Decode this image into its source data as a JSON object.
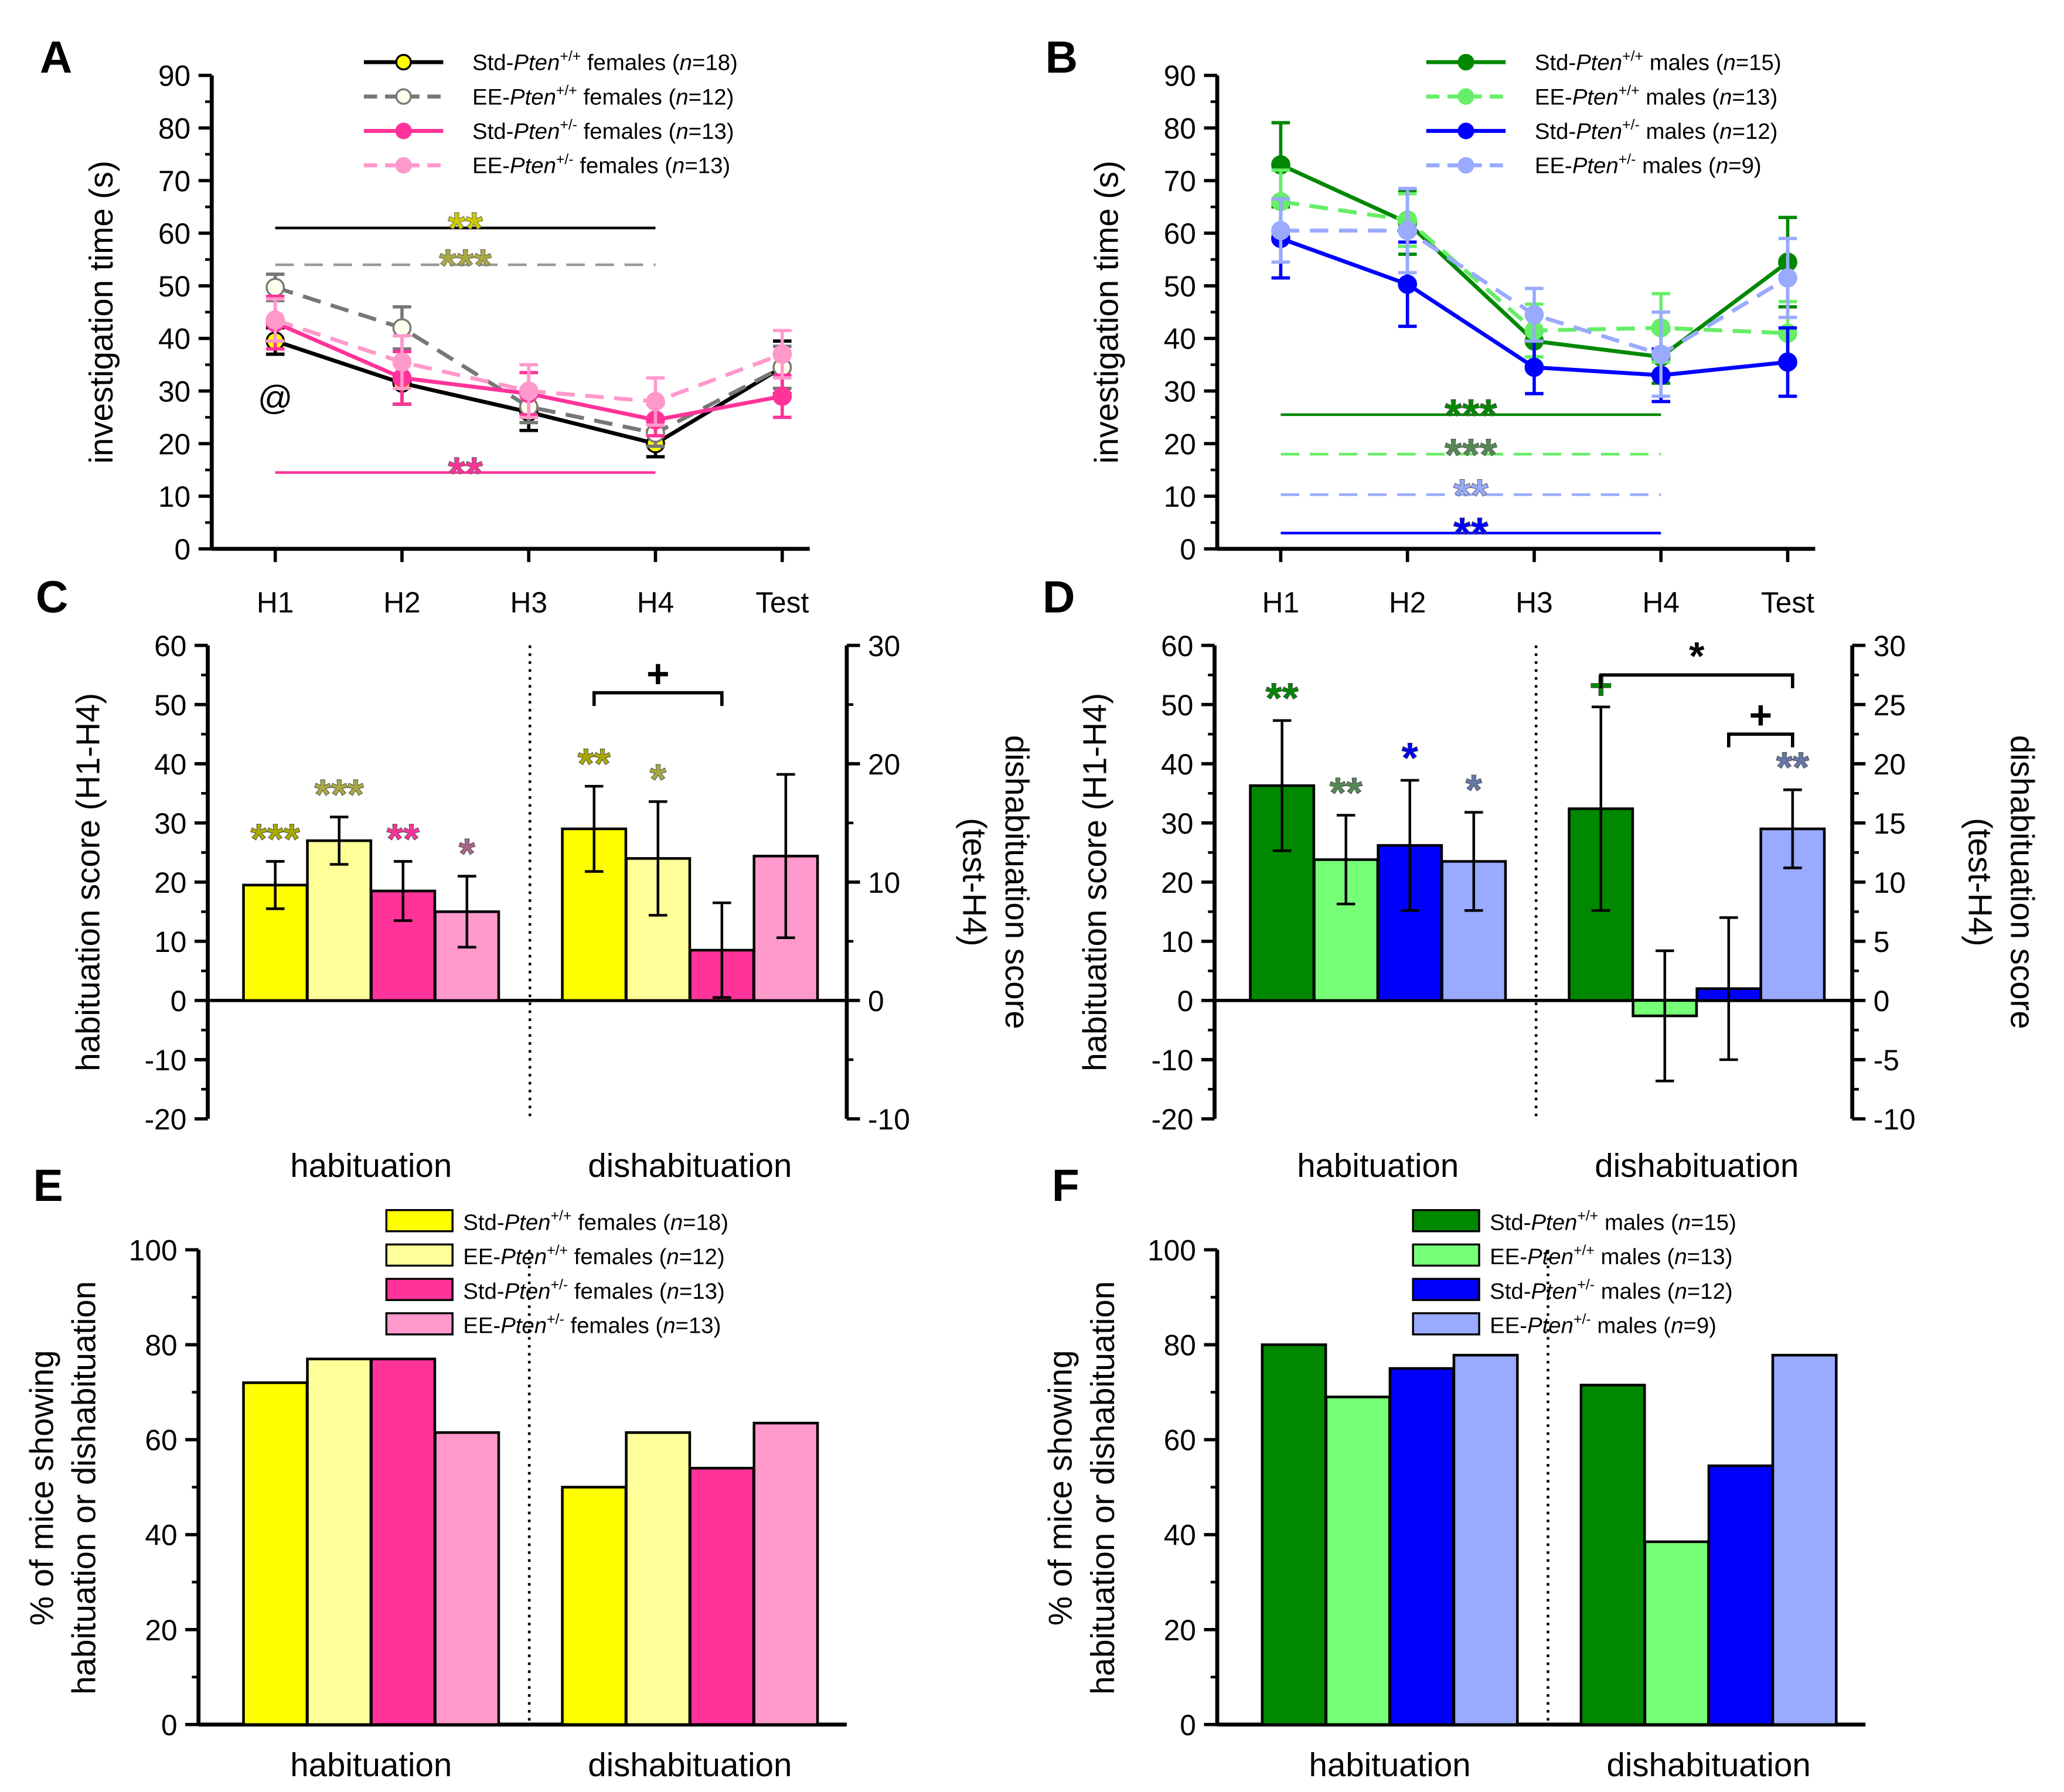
{
  "colors": {
    "std_wt_f": "#000000",
    "ee_wt_f": "#777777",
    "std_het_f": "#ff3399",
    "ee_het_f": "#ff99cc",
    "bar_std_wt_f": "#ffff00",
    "bar_ee_wt_f": "#ffff99",
    "bar_std_het_f": "#ff3399",
    "bar_ee_het_f": "#ff99cc",
    "std_wt_m": "#008800",
    "ee_wt_m": "#66ee66",
    "std_het_m": "#0000ff",
    "ee_het_m": "#99aaff",
    "bar_std_wt_m": "#008800",
    "bar_ee_wt_m": "#77ff77",
    "bar_std_het_m": "#0000ff",
    "bar_ee_het_m": "#99aaff"
  },
  "chart_data": [
    {
      "panel": "A",
      "type": "line",
      "categories": [
        "H1",
        "H2",
        "H3",
        "H4",
        "Test"
      ],
      "ylabel": "investigation time (s)",
      "ylim": [
        0,
        90
      ],
      "yticks": [
        0,
        10,
        20,
        30,
        40,
        50,
        60,
        70,
        80,
        90
      ],
      "series": [
        {
          "name": "Std-Pten+/+ females (n=18)",
          "legend": {
            "pre": "Std-",
            "gene": "Pten",
            "sup": "+/+",
            "post": " females (",
            "n": "n",
            "end": "=18)"
          },
          "color": "#000000",
          "marker": "#ffff00",
          "dashed": false,
          "values": [
            39.5,
            31.5,
            26,
            20,
            34.5
          ],
          "errors": [
            2.5,
            4,
            3.5,
            2.5,
            5
          ]
        },
        {
          "name": "EE-Pten+/+ females (n=12)",
          "legend": {
            "pre": "EE-",
            "gene": "Pten",
            "sup": "+/+",
            "post": " females (",
            "n": "n",
            "end": "=12)"
          },
          "color": "#777777",
          "marker": "#ffffee",
          "dashed": true,
          "values": [
            49.7,
            42,
            27,
            22,
            34.5
          ],
          "errors": [
            2.5,
            4,
            3,
            2.5,
            4
          ]
        },
        {
          "name": "Std-Pten+/- females (n=13)",
          "legend": {
            "pre": "Std-",
            "gene": "Pten",
            "sup": "+/-",
            "post": " females (",
            "n": "n",
            "end": "=13)"
          },
          "color": "#ff3399",
          "marker": "#ff3399",
          "dashed": false,
          "values": [
            43,
            32.5,
            29.5,
            24.5,
            29
          ],
          "errors": [
            5,
            5,
            4,
            3,
            4
          ]
        },
        {
          "name": "EE-Pten+/- females (n=13)",
          "legend": {
            "pre": "EE-",
            "gene": "Pten",
            "sup": "+/-",
            "post": " females (",
            "n": "n",
            "end": "=13)"
          },
          "color": "#ff99cc",
          "marker": "#ff99cc",
          "dashed": true,
          "values": [
            43.5,
            35.5,
            30,
            28,
            37
          ],
          "errors": [
            4,
            5,
            5,
            4.5,
            4.5
          ]
        }
      ],
      "annotations": [
        {
          "text": "**",
          "y": 61,
          "color": "#000000",
          "star": "#cccc00",
          "dashed": false
        },
        {
          "text": "***",
          "y": 54,
          "color": "#999999",
          "star": "#aaaa44",
          "dashed": true
        },
        {
          "text": "**",
          "y": 14.5,
          "color": "#ff3399",
          "star": "#ff3399",
          "dashed": false
        }
      ],
      "marker_text": {
        "text": "@",
        "category": "H1",
        "y": 29
      }
    },
    {
      "panel": "B",
      "type": "line",
      "categories": [
        "H1",
        "H2",
        "H3",
        "H4",
        "Test"
      ],
      "ylabel": "investigation time (s)",
      "ylim": [
        0,
        90
      ],
      "yticks": [
        0,
        10,
        20,
        30,
        40,
        50,
        60,
        70,
        80,
        90
      ],
      "series": [
        {
          "name": "Std-Pten+/+ males (n=15)",
          "legend": {
            "pre": "Std-",
            "gene": "Pten",
            "sup": "+/+",
            "post": " males (",
            "n": "n",
            "end": "=15)"
          },
          "color": "#008800",
          "marker": "#008800",
          "dashed": false,
          "values": [
            73,
            62,
            39.5,
            36.5,
            54.5
          ],
          "errors": [
            8,
            6,
            5,
            5,
            8.5
          ]
        },
        {
          "name": "EE-Pten+/+ males (n=13)",
          "legend": {
            "pre": "EE-",
            "gene": "Pten",
            "sup": "+/+",
            "post": " males (",
            "n": "n",
            "end": "=13)"
          },
          "color": "#66ee66",
          "marker": "#66ee66",
          "dashed": true,
          "values": [
            66,
            62.5,
            41.5,
            42,
            41
          ],
          "errors": [
            6,
            5,
            5,
            6.5,
            6
          ]
        },
        {
          "name": "Std-Pten+/- males (n=12)",
          "legend": {
            "pre": "Std-",
            "gene": "Pten",
            "sup": "+/-",
            "post": " males (",
            "n": "n",
            "end": "=12)"
          },
          "color": "#0000ff",
          "marker": "#0000ff",
          "dashed": false,
          "values": [
            59,
            50.3,
            34.5,
            33,
            35.5
          ],
          "errors": [
            7.5,
            8,
            5,
            5,
            6.5
          ]
        },
        {
          "name": "EE-Pten+/- males (n=9)",
          "legend": {
            "pre": "EE-",
            "gene": "Pten",
            "sup": "+/-",
            "post": " males (",
            "n": "n",
            "end": "=9)"
          },
          "color": "#99aaff",
          "marker": "#99aaff",
          "dashed": true,
          "values": [
            60.5,
            60.5,
            44.5,
            37,
            51.5
          ],
          "errors": [
            6,
            8,
            5,
            8,
            7.5
          ]
        }
      ],
      "annotations": [
        {
          "text": "***",
          "y": 25.5,
          "color": "#008800",
          "star": "#008800",
          "dashed": false
        },
        {
          "text": "***",
          "y": 18,
          "color": "#66ee66",
          "star": "#558855",
          "dashed": true
        },
        {
          "text": "**",
          "y": 10.3,
          "color": "#99aaff",
          "star": "#99aaff",
          "dashed": true
        },
        {
          "text": "**",
          "y": 3,
          "color": "#0000ff",
          "star": "#0000ff",
          "dashed": false
        }
      ]
    },
    {
      "panel": "C",
      "type": "bar",
      "groups": [
        "habituation",
        "dishabituation"
      ],
      "ylabel": "habituation score (H1-H4)",
      "ylim": [
        -20,
        60
      ],
      "yticks": [
        -20,
        -10,
        0,
        10,
        20,
        30,
        40,
        50,
        60
      ],
      "y2label": [
        "dishabituation score",
        "(test-H4)"
      ],
      "y2lim": [
        -10,
        30
      ],
      "y2ticks": [
        -10,
        0,
        10,
        20,
        30
      ],
      "colors": [
        "#ffff00",
        "#ffff99",
        "#ff3399",
        "#ff99cc"
      ],
      "habituation": {
        "values": [
          19.5,
          27,
          18.5,
          15
        ],
        "errors": [
          4,
          4,
          5,
          6
        ],
        "stars": [
          "***",
          "***",
          "**",
          "*"
        ],
        "star_colors": [
          "#aaaa00",
          "#aaaa44",
          "#ff3399",
          "#aa6688"
        ]
      },
      "dishabituation": {
        "values": [
          14.5,
          12,
          4.25,
          12.2
        ],
        "errors": [
          3.6,
          4.8,
          4,
          6.9
        ],
        "stars": [
          "**",
          "*",
          "",
          ""
        ],
        "star_colors": [
          "#aaaa00",
          "#aaaa44",
          "",
          ""
        ]
      },
      "brackets": [
        {
          "from": 0,
          "to": 2,
          "text": "+",
          "y2": 26
        }
      ]
    },
    {
      "panel": "D",
      "type": "bar",
      "groups": [
        "habituation",
        "dishabituation"
      ],
      "ylabel": "habituation score (H1-H4)",
      "ylim": [
        -20,
        60
      ],
      "yticks": [
        -20,
        -10,
        0,
        10,
        20,
        30,
        40,
        50,
        60
      ],
      "y2label": [
        "dishabituation score",
        "(test-H4)"
      ],
      "y2lim": [
        -10,
        30
      ],
      "y2ticks": [
        -10,
        -5,
        0,
        5,
        10,
        15,
        20,
        25,
        30
      ],
      "colors": [
        "#008800",
        "#77ff77",
        "#0000ff",
        "#99aaff"
      ],
      "habituation": {
        "values": [
          36.3,
          23.8,
          26.2,
          23.5
        ],
        "errors": [
          11,
          7.5,
          11,
          8.3
        ],
        "stars": [
          "**",
          "**",
          "*",
          "*"
        ],
        "star_colors": [
          "#008800",
          "#558855",
          "#0000ff",
          "#6677aa"
        ]
      },
      "dishabituation": {
        "values": [
          16.2,
          -1.3,
          1,
          14.5
        ],
        "errors": [
          8.6,
          5.5,
          6,
          3.3
        ],
        "stars": [
          "+",
          "",
          "",
          "**"
        ],
        "star_colors": [
          "#008800",
          "",
          "",
          "#6677aa"
        ]
      },
      "brackets": [
        {
          "from": 0,
          "to": 3,
          "text": "*",
          "y2": 27.5
        },
        {
          "from": 2,
          "to": 3,
          "text": "+",
          "y2": 22.5
        }
      ]
    },
    {
      "panel": "E",
      "type": "bar",
      "groups": [
        "habituation",
        "dishabituation"
      ],
      "ylabel": [
        "% of mice showing",
        "habituation or dishabituation"
      ],
      "ylim": [
        0,
        100
      ],
      "yticks": [
        0,
        20,
        40,
        60,
        80,
        100
      ],
      "legend": [
        {
          "pre": "Std-",
          "gene": "Pten",
          "sup": "+/+",
          "post": " females (",
          "n": "n",
          "end": "=18)"
        },
        {
          "pre": "EE-",
          "gene": "Pten",
          "sup": "+/+",
          "post": " females (",
          "n": "n",
          "end": "=12)"
        },
        {
          "pre": "Std-",
          "gene": "Pten",
          "sup": "+/-",
          "post": " females (",
          "n": "n",
          "end": "=13)"
        },
        {
          "pre": "EE-",
          "gene": "Pten",
          "sup": "+/-",
          "post": " females (",
          "n": "n",
          "end": "=13)"
        }
      ],
      "colors": [
        "#ffff00",
        "#ffff99",
        "#ff3399",
        "#ff99cc"
      ],
      "habituation": {
        "values": [
          72,
          77,
          77,
          61.5
        ]
      },
      "dishabituation": {
        "values": [
          50,
          61.5,
          54,
          63.5
        ]
      }
    },
    {
      "panel": "F",
      "type": "bar",
      "groups": [
        "habituation",
        "dishabituation"
      ],
      "ylabel": [
        "% of mice showing",
        "habituation or dishabituation"
      ],
      "ylim": [
        0,
        100
      ],
      "yticks": [
        0,
        20,
        40,
        60,
        80,
        100
      ],
      "legend": [
        {
          "pre": "Std-",
          "gene": "Pten",
          "sup": "+/+",
          "post": " males (",
          "n": "n",
          "end": "=15)"
        },
        {
          "pre": "EE-",
          "gene": "Pten",
          "sup": "+/+",
          "post": " males (",
          "n": "n",
          "end": "=13)"
        },
        {
          "pre": "Std-",
          "gene": "Pten",
          "sup": "+/-",
          "post": " males (",
          "n": "n",
          "end": "=12)"
        },
        {
          "pre": "EE-",
          "gene": "Pten",
          "sup": "+/-",
          "post": " males (",
          "n": "n",
          "end": "=9)"
        }
      ],
      "colors": [
        "#008800",
        "#77ff77",
        "#0000ff",
        "#99aaff"
      ],
      "habituation": {
        "values": [
          80,
          69,
          75,
          77.8
        ]
      },
      "dishabituation": {
        "values": [
          71.5,
          38.5,
          54.5,
          77.8
        ]
      }
    }
  ]
}
